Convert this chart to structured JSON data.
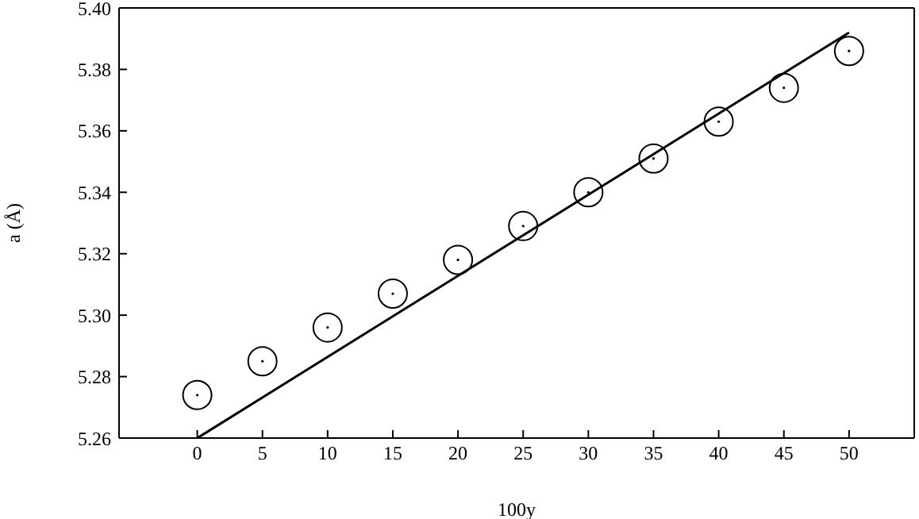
{
  "chart_data": {
    "type": "scatter",
    "xlabel": "100y",
    "ylabel": "a (Å)",
    "xlim": [
      -6,
      55
    ],
    "xticks": [
      0,
      5,
      10,
      15,
      20,
      25,
      30,
      35,
      40,
      45,
      50
    ],
    "ylim": [
      5.26,
      5.4
    ],
    "yticks": [
      {
        "value": 5.26,
        "label": "5.26"
      },
      {
        "value": 5.28,
        "label": "5.28"
      },
      {
        "value": 5.3,
        "label": "5.30"
      },
      {
        "value": 5.32,
        "label": "5.32"
      },
      {
        "value": 5.34,
        "label": "5.34"
      },
      {
        "value": 5.36,
        "label": "5.36"
      },
      {
        "value": 5.38,
        "label": "5.38"
      },
      {
        "value": 5.4,
        "label": "5.40"
      }
    ],
    "series": [
      {
        "marker": "circle",
        "color": "#000000",
        "x": [
          0,
          5,
          10,
          15,
          20,
          25,
          30,
          35,
          40,
          45,
          50
        ],
        "values": [
          5.274,
          5.285,
          5.296,
          5.307,
          5.318,
          5.329,
          5.34,
          5.351,
          5.363,
          5.374,
          5.386
        ]
      },
      {
        "type": "line",
        "color": "#000000",
        "line_style": "solid",
        "x": [
          0,
          50
        ],
        "values": [
          5.26,
          5.392
        ]
      }
    ]
  }
}
